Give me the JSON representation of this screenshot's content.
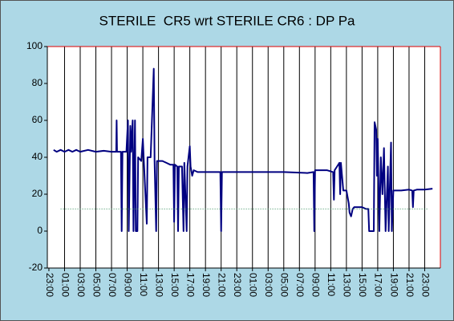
{
  "chart_data": {
    "type": "line",
    "title": "STERILE  CR5 wrt STERILE CR6 : DP Pa",
    "xlim": [
      -0.2,
      50
    ],
    "xticks": [
      {
        "value": 0,
        "label": "23:00"
      },
      {
        "value": 2,
        "label": "01:00"
      },
      {
        "value": 4,
        "label": "03:00"
      },
      {
        "value": 6,
        "label": "05:00"
      },
      {
        "value": 8,
        "label": "07:00"
      },
      {
        "value": 10,
        "label": "09:00"
      },
      {
        "value": 12,
        "label": "11:00"
      },
      {
        "value": 14,
        "label": "13:00"
      },
      {
        "value": 16,
        "label": "15:00"
      },
      {
        "value": 18,
        "label": "17:00"
      },
      {
        "value": 20,
        "label": "19:00"
      },
      {
        "value": 22,
        "label": "21:00"
      },
      {
        "value": 24,
        "label": "23:00"
      },
      {
        "value": 26,
        "label": "01:00"
      },
      {
        "value": 28,
        "label": "03:00"
      },
      {
        "value": 30,
        "label": "05:00"
      },
      {
        "value": 32,
        "label": "07:00"
      },
      {
        "value": 34,
        "label": "09:00"
      },
      {
        "value": 36,
        "label": "11:00"
      },
      {
        "value": 38,
        "label": "13:00"
      },
      {
        "value": 40,
        "label": "15:00"
      },
      {
        "value": 42,
        "label": "17:00"
      },
      {
        "value": 44,
        "label": "19:00"
      },
      {
        "value": 46,
        "label": "21:00"
      },
      {
        "value": 48,
        "label": "23:00"
      }
    ],
    "ylim": [
      -20,
      100
    ],
    "yticks": [
      -20,
      0,
      20,
      40,
      60,
      80,
      100
    ],
    "grid": "x",
    "series": [
      {
        "color": "#000080",
        "x": [
          0.6,
          1,
          1.5,
          2,
          2.5,
          3,
          3.5,
          4,
          5,
          6,
          7,
          8,
          8.6,
          8.65,
          8.7,
          9.2,
          9.3,
          9.4,
          9.9,
          10.1,
          10.2,
          10.4,
          10.5,
          10.7,
          10.8,
          11,
          11.1,
          11.3,
          11.4,
          11.8,
          12,
          12.1,
          12.5,
          12.6,
          13,
          13.4,
          13.5,
          13.7,
          13.8,
          14.5,
          15,
          15.5,
          15.9,
          16,
          16.1,
          16.4,
          16.5,
          16.6,
          17,
          17.2,
          17.3,
          17.6,
          17.7,
          18,
          18.1,
          18.3,
          18.5,
          19,
          21,
          21.9,
          22,
          22.1,
          25,
          30,
          33,
          33.8,
          33.9,
          34,
          35,
          35.5,
          36.3,
          36.4,
          36.5,
          36.8,
          37.1,
          37.2,
          37.3,
          37.6,
          38,
          38.3,
          38.4,
          38.6,
          38.8,
          39,
          40,
          40.5,
          40.8,
          40.9,
          41.5,
          41.6,
          41.8,
          41.9,
          42,
          42.2,
          42.4,
          42.6,
          42.8,
          43,
          43.3,
          43.4,
          43.7,
          43.8,
          44,
          44.5,
          45,
          46,
          46.4,
          46.5,
          46.6,
          47,
          48,
          49
        ],
        "values": [
          44,
          43,
          44,
          43,
          44,
          43,
          44,
          43,
          44,
          43,
          43.5,
          43,
          43,
          60,
          43,
          43,
          0,
          43,
          43,
          60,
          0,
          57,
          43,
          60,
          0,
          60,
          0,
          0,
          40,
          38,
          50,
          40,
          4,
          40,
          40,
          88,
          38,
          0,
          38,
          38,
          37,
          36,
          36,
          5,
          36,
          35,
          0,
          35,
          35,
          0,
          37,
          0,
          35,
          46,
          35,
          30,
          33,
          32,
          32,
          32,
          0,
          32,
          32,
          32,
          31.5,
          32,
          0,
          33,
          33,
          33,
          32,
          17,
          33,
          35,
          37,
          20,
          37,
          22,
          22,
          15,
          10,
          8,
          12,
          13,
          13,
          12,
          12,
          0,
          0,
          59,
          55,
          30,
          50,
          0,
          40,
          20,
          45,
          0,
          35,
          0,
          48,
          0,
          22,
          22,
          22,
          22.5,
          22,
          13,
          22,
          22.5,
          22.5,
          23
        ]
      },
      {
        "color": "#2e8b57",
        "dash": "dotted",
        "x": [
          1.5,
          48.5
        ],
        "values": [
          12,
          12
        ]
      }
    ]
  }
}
